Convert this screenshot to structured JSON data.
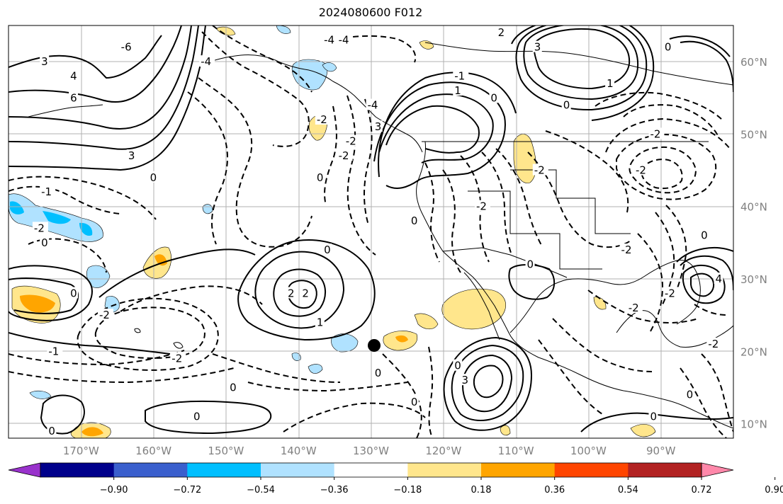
{
  "title": "2024080600 F012",
  "lon_ticks": [
    "170°W",
    "160°W",
    "150°W",
    "140°W",
    "130°W",
    "120°W",
    "110°W",
    "100°W",
    "90°W"
  ],
  "lat_ticks": [
    "60°N",
    "50°N",
    "40°N",
    "30°N",
    "20°N",
    "10°N"
  ],
  "colorbar": {
    "labels": [
      "−0.90",
      "−0.72",
      "−0.54",
      "−0.36",
      "−0.18",
      "0.18",
      "0.36",
      "0.54",
      "0.72",
      "0.90"
    ],
    "colors": [
      "#9932cc",
      "#00008b",
      "#3a5fcd",
      "#00bfff",
      "#b0e2ff",
      "#ffffff",
      "#ffe68c",
      "#ffa500",
      "#ff4500",
      "#b22222",
      "#ff88aa"
    ]
  },
  "contour_labels": [
    {
      "text": "3",
      "lon": -175,
      "lat": 60
    },
    {
      "text": "4",
      "lon": -171,
      "lat": 58
    },
    {
      "text": "6",
      "lon": -171,
      "lat": 55
    },
    {
      "text": "-6",
      "lon": -164,
      "lat": 62
    },
    {
      "text": "-4",
      "lon": -153,
      "lat": 60
    },
    {
      "text": "-4",
      "lon": -136,
      "lat": 63
    },
    {
      "text": "-4",
      "lon": -134,
      "lat": 63
    },
    {
      "text": "-2",
      "lon": -137,
      "lat": 52
    },
    {
      "text": "-2",
      "lon": -133,
      "lat": 49
    },
    {
      "text": "-2",
      "lon": -134,
      "lat": 47
    },
    {
      "text": "-4",
      "lon": -130,
      "lat": 54
    },
    {
      "text": "3",
      "lon": -129,
      "lat": 51
    },
    {
      "text": "1",
      "lon": -118,
      "lat": 56
    },
    {
      "text": "0",
      "lon": -113,
      "lat": 55
    },
    {
      "text": "-1",
      "lon": -118,
      "lat": 58
    },
    {
      "text": "2",
      "lon": -112,
      "lat": 64
    },
    {
      "text": "3",
      "lon": -107,
      "lat": 62
    },
    {
      "text": "0",
      "lon": -89,
      "lat": 62
    },
    {
      "text": "1",
      "lon": -97,
      "lat": 57
    },
    {
      "text": "0",
      "lon": -103,
      "lat": 54
    },
    {
      "text": "-2",
      "lon": -91,
      "lat": 50
    },
    {
      "text": "-2",
      "lon": -93,
      "lat": 45
    },
    {
      "text": "-2",
      "lon": -107,
      "lat": 45
    },
    {
      "text": "-2",
      "lon": -115,
      "lat": 40
    },
    {
      "text": "-2",
      "lon": -95,
      "lat": 34
    },
    {
      "text": "-1",
      "lon": -175,
      "lat": 42
    },
    {
      "text": "3",
      "lon": -163,
      "lat": 47
    },
    {
      "text": "0",
      "lon": -160,
      "lat": 44
    },
    {
      "text": "0",
      "lon": -175,
      "lat": 35
    },
    {
      "text": "-2",
      "lon": -176,
      "lat": 37
    },
    {
      "text": "0",
      "lon": -171,
      "lat": 28
    },
    {
      "text": "-2",
      "lon": -167,
      "lat": 25
    },
    {
      "text": "-1",
      "lon": -174,
      "lat": 20
    },
    {
      "text": "-2",
      "lon": -157,
      "lat": 19
    },
    {
      "text": "0",
      "lon": -149,
      "lat": 15
    },
    {
      "text": "0",
      "lon": -154,
      "lat": 11
    },
    {
      "text": "0",
      "lon": -174,
      "lat": 9
    },
    {
      "text": "0",
      "lon": -137,
      "lat": 44
    },
    {
      "text": "0",
      "lon": -136,
      "lat": 34
    },
    {
      "text": "2",
      "lon": -141,
      "lat": 28
    },
    {
      "text": "2",
      "lon": -139,
      "lat": 28
    },
    {
      "text": "1",
      "lon": -137,
      "lat": 24
    },
    {
      "text": "0",
      "lon": -129,
      "lat": 17
    },
    {
      "text": "0",
      "lon": -124,
      "lat": 38
    },
    {
      "text": "0",
      "lon": -124,
      "lat": 13
    },
    {
      "text": "0",
      "lon": -118,
      "lat": 18
    },
    {
      "text": "3",
      "lon": -117,
      "lat": 16
    },
    {
      "text": "0",
      "lon": -108,
      "lat": 32
    },
    {
      "text": "-2",
      "lon": -94,
      "lat": 26
    },
    {
      "text": "-2",
      "lon": -83,
      "lat": 21
    },
    {
      "text": "-2",
      "lon": -89,
      "lat": 28
    },
    {
      "text": "4",
      "lon": -82,
      "lat": 30
    },
    {
      "text": "0",
      "lon": -84,
      "lat": 36
    },
    {
      "text": "0",
      "lon": -91,
      "lat": 11
    },
    {
      "text": "0",
      "lon": -86,
      "lat": 14
    }
  ]
}
